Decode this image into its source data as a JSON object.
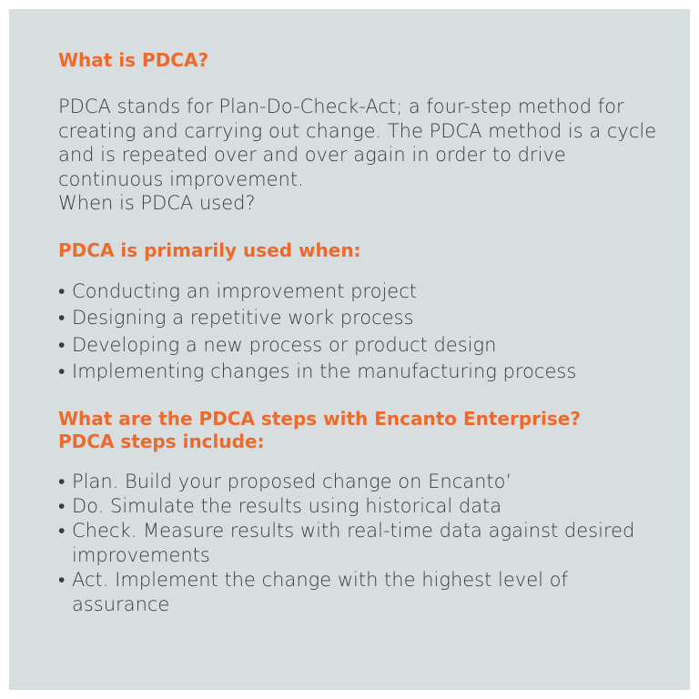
{
  "colors": {
    "background": "#d8dde0",
    "accent": "#ec6a2c",
    "text": "#383d45"
  },
  "section1": {
    "heading": "What is PDCA?",
    "paragraph": "PDCA stands for Plan-Do-Check-Act; a four-step method for creating and carrying out change. The PDCA method is a cycle and is repeated over and over again in order to drive continuous improvement.",
    "subline": "When is PDCA used?"
  },
  "section2": {
    "heading": "PDCA is primarily used when:",
    "items": [
      "Conducting an improvement project",
      "Designing a repetitive work process",
      "Developing a new process or product design",
      "Implementing changes in the manufacturing process"
    ]
  },
  "section3": {
    "heading_line1": "What are the PDCA steps with Encanto Enterprise?",
    "heading_line2": "PDCA steps include:",
    "items": [
      "Plan. Build your proposed change on Encanto’",
      "Do. Simulate the results using historical data",
      "Check. Measure results with real-time data against desired improvements",
      "Act. Implement the change with the highest level of assurance"
    ]
  },
  "bullet_char": "•"
}
